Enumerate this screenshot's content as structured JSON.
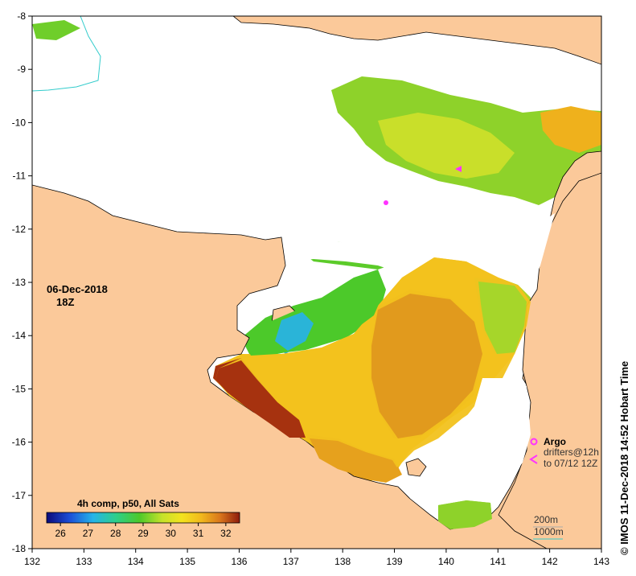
{
  "map": {
    "date": "06-Dec-2018",
    "time": "18Z",
    "credit": "© IMOS 11-Dec-2018 14:52 Hobart Time",
    "x_axis": {
      "min": 132,
      "max": 143,
      "ticks": [
        "132",
        "133",
        "134",
        "135",
        "136",
        "137",
        "138",
        "139",
        "140",
        "141",
        "142",
        "143"
      ]
    },
    "y_axis": {
      "min": -18,
      "max": -8,
      "ticks": [
        "-8",
        "-9",
        "-10",
        "-11",
        "-12",
        "-13",
        "-14",
        "-15",
        "-16",
        "-17",
        "-18"
      ]
    },
    "colorbar": {
      "title": "4h comp, p50, All Sats",
      "min": 25.5,
      "max": 32.5,
      "ticks": [
        "26",
        "27",
        "28",
        "29",
        "30",
        "31",
        "32"
      ]
    },
    "legend": {
      "argo_label": "Argo",
      "drifters_label": "drifters@12h",
      "drifters_range": "to 07/12 12Z",
      "contour_200": "200m",
      "contour_1000": "1000m"
    },
    "colors": {
      "land": "#fbc99a",
      "no_data": "#ffffff",
      "marker": "#ff33ff",
      "contour_1000": "#33cccc",
      "contour_200": "#aaaaaa"
    }
  }
}
